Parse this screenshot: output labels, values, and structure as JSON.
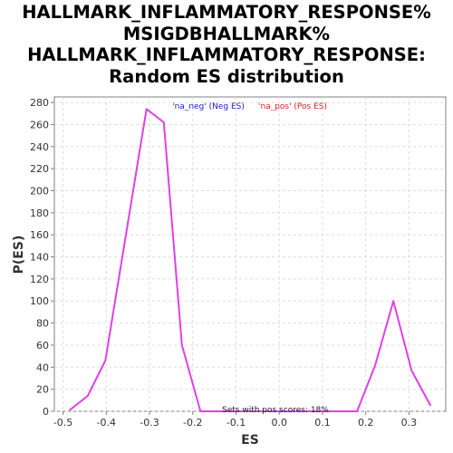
{
  "chart_data": {
    "type": "line",
    "title_lines": [
      "HALLMARK_INFLAMMATORY_RESPONSE%",
      "MSIGDBHALLMARK%",
      "HALLMARK_INFLAMMATORY_RESPONSE:",
      "Random ES distribution"
    ],
    "xlabel": "ES",
    "ylabel": "P(ES)",
    "xlim": [
      -0.52,
      0.385
    ],
    "ylim": [
      0,
      285
    ],
    "x_ticks": [
      -0.5,
      -0.4,
      -0.3,
      -0.2,
      -0.1,
      0.0,
      0.1,
      0.2,
      0.3
    ],
    "x_tick_labels": [
      "-0.5",
      "-0.4",
      "-0.3",
      "-0.2",
      "-0.1",
      "0.0",
      "0.1",
      "0.2",
      "0.3"
    ],
    "y_ticks": [
      0,
      20,
      40,
      60,
      80,
      100,
      120,
      140,
      160,
      180,
      200,
      220,
      240,
      260,
      280
    ],
    "grid": true,
    "legend": [
      {
        "label": "'na_neg' (Neg ES)",
        "color": "#2020d0"
      },
      {
        "label": "'na_pos' (Pos ES)",
        "color": "#e02020"
      }
    ],
    "series": [
      {
        "color": "#e040e8",
        "x": [
          -0.485,
          -0.443,
          -0.402,
          -0.307,
          -0.267,
          -0.225,
          -0.182,
          -0.14,
          -0.1,
          -0.05,
          0.0,
          0.05,
          0.1,
          0.14,
          0.18,
          0.222,
          0.264,
          0.306,
          0.35
        ],
        "y": [
          1,
          14,
          46,
          274,
          262,
          60,
          0,
          0,
          0,
          0,
          0,
          0,
          0,
          0,
          0,
          42,
          100,
          37,
          5
        ]
      }
    ],
    "annotation": "Sets with pos scores: 18%"
  },
  "colors": {
    "plot_background": "#ffffff",
    "grid": "#dddddd",
    "axis": "#808080",
    "line": "#e040e8"
  }
}
